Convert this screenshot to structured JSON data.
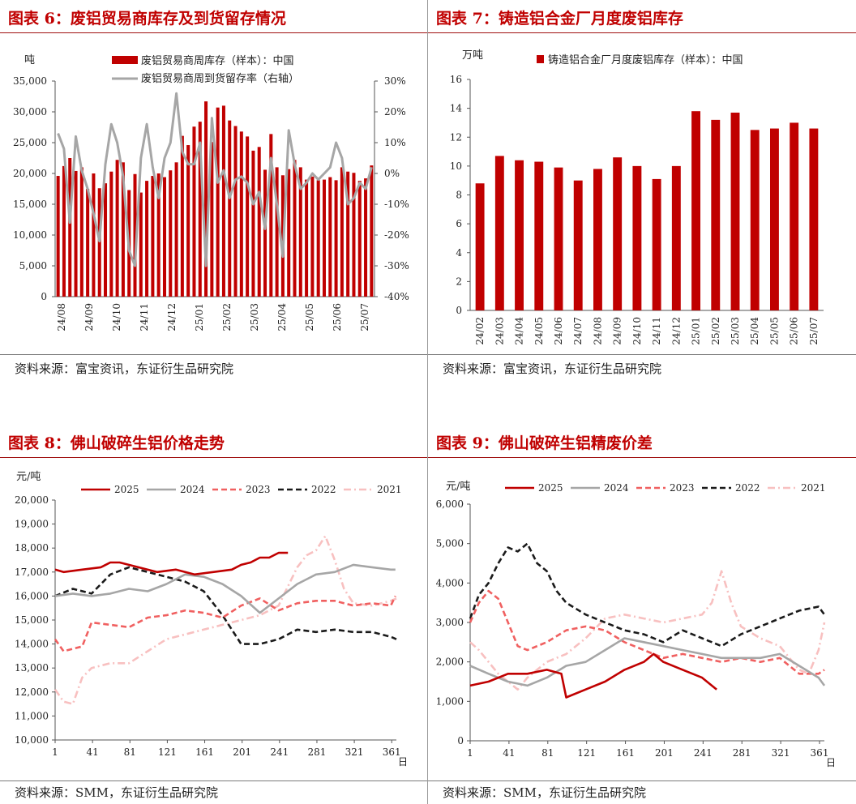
{
  "panels": {
    "fig6": {
      "title": "图表 6：废铝贸易商库存及到货留存情况",
      "source": "资料来源：富宝资讯，东证衍生品研究院"
    },
    "fig7": {
      "title": "图表 7：铸造铝合金厂月度废铝库存",
      "source": "资料来源：富宝资讯，东证衍生品研究院"
    },
    "fig8": {
      "title": "图表 8：佛山破碎生铝价格走势",
      "source": "资料来源：SMM，东证衍生品研究院"
    },
    "fig9": {
      "title": "图表 9：佛山破碎生铝精废价差",
      "source": "资料来源：SMM，东证衍生品研究院"
    }
  },
  "colors": {
    "red": "#c00000",
    "gray": "#a6a6a6",
    "pink": "#f06060",
    "black": "#1a1a1a",
    "lightpink": "#f8c0c0"
  },
  "chart_data": [
    {
      "id": "fig6",
      "type": "bar+line",
      "yunit_left": "吨",
      "ylim_left": [
        0,
        35000
      ],
      "yticks_left": [
        "0",
        "5,000",
        "10,000",
        "15,000",
        "20,000",
        "25,000",
        "30,000",
        "35,000"
      ],
      "ylim_right": [
        -40,
        30
      ],
      "yticks_right": [
        "-40%",
        "-30%",
        "-20%",
        "-10%",
        "0%",
        "10%",
        "20%",
        "30%"
      ],
      "x_tick_labels": [
        "24/08",
        "24/09",
        "24/10",
        "24/11",
        "24/12",
        "25/01",
        "25/02",
        "25/03",
        "25/04",
        "25/05",
        "25/06",
        "25/07"
      ],
      "legend": [
        "废铝贸易商周库存（样本）：中国",
        "废铝贸易商周到货留存率（右轴）"
      ],
      "series": [
        {
          "name": "废铝贸易商周库存（样本）：中国",
          "kind": "bar",
          "values": [
            19600,
            21200,
            22500,
            20400,
            21000,
            17500,
            20000,
            17600,
            18400,
            20300,
            22200,
            21800,
            17300,
            19900,
            16900,
            18800,
            19600,
            20000,
            19400,
            20500,
            21800,
            26100,
            24600,
            27600,
            28400,
            31700,
            25100,
            30700,
            31000,
            28600,
            27700,
            26800,
            26000,
            23700,
            24300,
            20600,
            26400,
            21000,
            19700,
            20700,
            22200,
            21000,
            19000,
            19500,
            18900,
            19000,
            19400,
            18900,
            21000,
            20300,
            20100,
            18800,
            19200,
            21300
          ]
        },
        {
          "name": "废铝贸易商周到货留存率（右轴）",
          "kind": "line",
          "values": [
            13,
            8,
            -16,
            12,
            1,
            -5,
            -13,
            -22,
            3,
            16,
            10,
            -1,
            -25,
            -30,
            5,
            16,
            2,
            -8,
            5,
            10,
            26,
            7,
            3,
            3,
            10,
            -30,
            18,
            -3,
            1,
            -8,
            -2,
            -1,
            -3,
            -10,
            -6,
            -18,
            5,
            -10,
            -27,
            14,
            3,
            -5,
            -3,
            0,
            -2,
            0,
            2,
            10,
            5,
            -10,
            -8,
            -3,
            -5,
            2
          ]
        }
      ]
    },
    {
      "id": "fig7",
      "type": "bar",
      "yunit": "万吨",
      "ylim": [
        0,
        16
      ],
      "yticks": [
        "0",
        "2",
        "4",
        "6",
        "8",
        "10",
        "12",
        "14",
        "16"
      ],
      "legend": [
        "铸造铝合金厂月度废铝库存（样本）：中国"
      ],
      "categories": [
        "24/02",
        "24/03",
        "24/04",
        "24/05",
        "24/06",
        "24/07",
        "24/08",
        "24/09",
        "24/10",
        "24/11",
        "24/12",
        "25/01",
        "25/02",
        "25/03",
        "25/04",
        "25/05",
        "25/06",
        "25/07"
      ],
      "values": [
        8.8,
        10.7,
        10.4,
        10.3,
        9.9,
        9.0,
        9.8,
        10.6,
        10.0,
        9.1,
        10.0,
        13.8,
        13.2,
        13.7,
        12.5,
        12.6,
        13.0,
        12.6
      ]
    },
    {
      "id": "fig8",
      "type": "line",
      "yunit": "元/吨",
      "ylim": [
        10000,
        20000
      ],
      "yticks": [
        "10,000",
        "11,000",
        "12,000",
        "13,000",
        "14,000",
        "15,000",
        "16,000",
        "17,000",
        "18,000",
        "19,000",
        "20,000"
      ],
      "xlim": [
        1,
        366
      ],
      "xticks": [
        "1",
        "41",
        "81",
        "121",
        "161",
        "201",
        "241",
        "281",
        "321",
        "361"
      ],
      "xunit": "日",
      "legend": [
        "2025",
        "2024",
        "2023",
        "2022",
        "2021"
      ],
      "series": [
        {
          "name": "2025",
          "style": "solid",
          "x": [
            1,
            10,
            30,
            50,
            60,
            70,
            90,
            110,
            130,
            150,
            170,
            190,
            200,
            210,
            220,
            230,
            240,
            250
          ],
          "y": [
            17100,
            17000,
            17100,
            17200,
            17400,
            17400,
            17200,
            17000,
            17100,
            16900,
            17000,
            17100,
            17300,
            17400,
            17600,
            17600,
            17800,
            17800
          ]
        },
        {
          "name": "2024",
          "style": "solid",
          "x": [
            1,
            20,
            40,
            60,
            80,
            100,
            120,
            140,
            160,
            180,
            200,
            220,
            240,
            260,
            280,
            300,
            320,
            340,
            360,
            365
          ],
          "y": [
            16000,
            16100,
            16000,
            16100,
            16300,
            16200,
            16500,
            16900,
            16800,
            16500,
            16000,
            15300,
            15900,
            16500,
            16900,
            17000,
            17300,
            17200,
            17100,
            17100
          ]
        },
        {
          "name": "2023",
          "style": "dash",
          "x": [
            1,
            10,
            30,
            40,
            60,
            80,
            100,
            120,
            140,
            160,
            180,
            200,
            220,
            240,
            260,
            280,
            300,
            320,
            340,
            360,
            365
          ],
          "y": [
            14200,
            13700,
            13900,
            14900,
            14800,
            14700,
            15100,
            15200,
            15400,
            15300,
            15100,
            15600,
            15900,
            15400,
            15700,
            15800,
            15800,
            15600,
            15700,
            15600,
            16000
          ]
        },
        {
          "name": "2022",
          "style": "dash",
          "x": [
            1,
            20,
            40,
            60,
            80,
            100,
            120,
            140,
            160,
            180,
            200,
            220,
            240,
            260,
            280,
            300,
            320,
            340,
            360,
            366
          ],
          "y": [
            16000,
            16300,
            16100,
            16900,
            17200,
            17000,
            16800,
            16600,
            16200,
            15200,
            14000,
            14000,
            14200,
            14600,
            14500,
            14600,
            14500,
            14500,
            14300,
            14200
          ]
        },
        {
          "name": "2021",
          "style": "dashdot",
          "x": [
            1,
            10,
            20,
            30,
            40,
            60,
            80,
            100,
            120,
            140,
            160,
            180,
            200,
            220,
            240,
            260,
            270,
            280,
            290,
            300,
            310,
            320,
            340,
            360,
            366
          ],
          "y": [
            12100,
            11600,
            11500,
            12600,
            13000,
            13200,
            13200,
            13700,
            14200,
            14400,
            14600,
            14800,
            15000,
            15200,
            15600,
            17200,
            17700,
            17900,
            18500,
            17500,
            16300,
            15700,
            15600,
            15800,
            15900
          ]
        }
      ]
    },
    {
      "id": "fig9",
      "type": "line",
      "yunit": "元/吨",
      "ylim": [
        0,
        6000
      ],
      "yticks": [
        "0",
        "1,000",
        "2,000",
        "3,000",
        "4,000",
        "5,000",
        "6,000"
      ],
      "xlim": [
        1,
        366
      ],
      "xticks": [
        "1",
        "41",
        "81",
        "121",
        "161",
        "201",
        "241",
        "281",
        "321",
        "361"
      ],
      "xunit": "日",
      "legend": [
        "2025",
        "2024",
        "2023",
        "2022",
        "2021"
      ],
      "series": [
        {
          "name": "2025",
          "style": "solid",
          "x": [
            1,
            20,
            40,
            60,
            80,
            95,
            100,
            120,
            140,
            160,
            180,
            190,
            200,
            220,
            240,
            255
          ],
          "y": [
            1400,
            1500,
            1700,
            1700,
            1800,
            1700,
            1100,
            1300,
            1500,
            1800,
            2000,
            2200,
            2000,
            1800,
            1600,
            1300
          ]
        },
        {
          "name": "2024",
          "style": "solid",
          "x": [
            1,
            20,
            40,
            60,
            80,
            100,
            120,
            140,
            160,
            180,
            200,
            220,
            240,
            260,
            280,
            300,
            320,
            340,
            360,
            366
          ],
          "y": [
            1900,
            1700,
            1500,
            1400,
            1600,
            1900,
            2000,
            2300,
            2600,
            2500,
            2400,
            2300,
            2200,
            2100,
            2100,
            2100,
            2200,
            1900,
            1600,
            1400
          ]
        },
        {
          "name": "2023",
          "style": "dash",
          "x": [
            1,
            10,
            20,
            30,
            40,
            50,
            60,
            80,
            100,
            120,
            140,
            160,
            180,
            200,
            220,
            240,
            260,
            280,
            300,
            320,
            340,
            360,
            366
          ],
          "y": [
            3000,
            3500,
            3800,
            3600,
            3000,
            2400,
            2300,
            2500,
            2800,
            2900,
            2800,
            2500,
            2300,
            2100,
            2200,
            2100,
            2000,
            2100,
            2000,
            2100,
            1700,
            1700,
            1800
          ]
        },
        {
          "name": "2022",
          "style": "dash",
          "x": [
            1,
            10,
            20,
            30,
            40,
            50,
            60,
            70,
            80,
            90,
            100,
            120,
            140,
            160,
            180,
            200,
            220,
            240,
            260,
            280,
            300,
            320,
            340,
            360,
            366
          ],
          "y": [
            3100,
            3700,
            4000,
            4500,
            4900,
            4800,
            5000,
            4500,
            4300,
            3800,
            3500,
            3200,
            3000,
            2800,
            2700,
            2500,
            2800,
            2600,
            2400,
            2700,
            2900,
            3100,
            3300,
            3400,
            3200
          ]
        },
        {
          "name": "2021",
          "style": "dashdot",
          "x": [
            1,
            10,
            20,
            30,
            40,
            50,
            60,
            80,
            100,
            120,
            140,
            160,
            180,
            200,
            220,
            240,
            250,
            260,
            270,
            280,
            300,
            320,
            340,
            350,
            360,
            366
          ],
          "y": [
            2500,
            2300,
            2000,
            1700,
            1500,
            1300,
            1600,
            2000,
            2200,
            2600,
            3100,
            3200,
            3100,
            3000,
            3100,
            3200,
            3500,
            4300,
            3500,
            2900,
            2600,
            2400,
            1800,
            1700,
            2300,
            3000
          ]
        }
      ]
    }
  ]
}
